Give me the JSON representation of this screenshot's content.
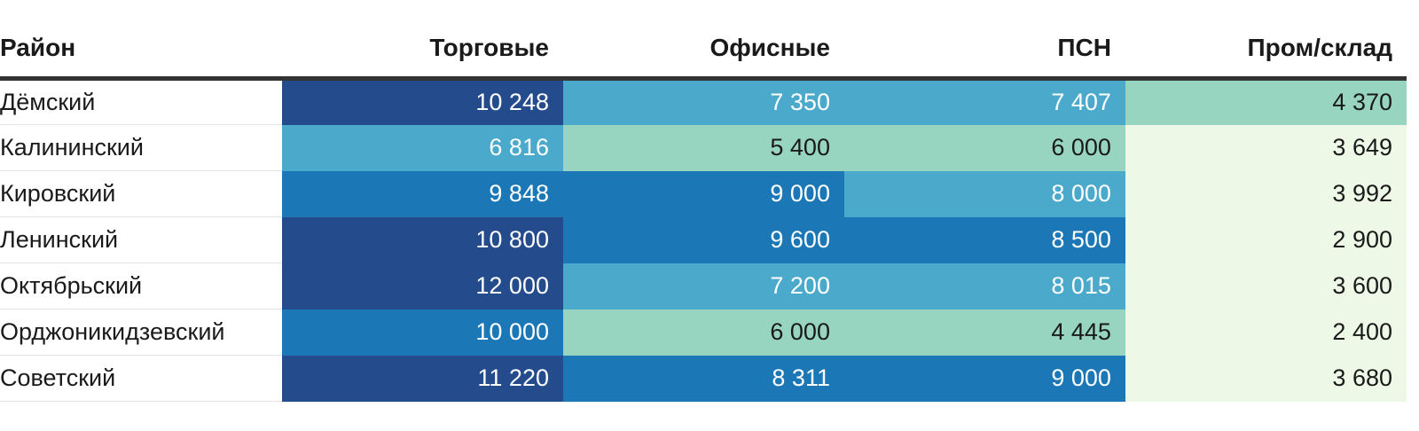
{
  "chart_data": {
    "type": "heatmap",
    "columns": [
      "Район",
      "Торговые",
      "Офисные",
      "ПСН",
      "Пром/склад"
    ],
    "rows": [
      {
        "district": "Дёмский",
        "values": [
          "10 248",
          "7 350",
          "7 407",
          "4 370"
        ],
        "numeric": [
          10248,
          7350,
          7407,
          4370
        ]
      },
      {
        "district": "Калининский",
        "values": [
          "6 816",
          "5 400",
          "6 000",
          "3 649"
        ],
        "numeric": [
          6816,
          5400,
          6000,
          3649
        ]
      },
      {
        "district": "Кировский",
        "values": [
          "9 848",
          "9 000",
          "8 000",
          "3 992"
        ],
        "numeric": [
          9848,
          9000,
          8000,
          3992
        ]
      },
      {
        "district": "Ленинский",
        "values": [
          "10 800",
          "9 600",
          "8 500",
          "2 900"
        ],
        "numeric": [
          10800,
          9600,
          8500,
          2900
        ]
      },
      {
        "district": "Октябрьский",
        "values": [
          "12 000",
          "7 200",
          "8 015",
          "3 600"
        ],
        "numeric": [
          12000,
          7200,
          8015,
          3600
        ]
      },
      {
        "district": "Орджоникидзевский",
        "values": [
          "10 000",
          "6 000",
          "4 445",
          "2 400"
        ],
        "numeric": [
          10000,
          6000,
          4445,
          2400
        ]
      },
      {
        "district": "Советский",
        "values": [
          "11 220",
          "8 311",
          "9 000",
          "3 680"
        ],
        "numeric": [
          11220,
          8311,
          9000,
          3680
        ]
      }
    ],
    "color_scale": [
      {
        "min": 0,
        "max": 4000,
        "color": "#edf8e6",
        "text_color": "#1a1a1a"
      },
      {
        "min": 4000,
        "max": 6800,
        "color": "#97d5c0",
        "text_color": "#1a1a1a"
      },
      {
        "min": 6800,
        "max": 8020,
        "color": "#4ba9cb",
        "text_color": "#ffffff"
      },
      {
        "min": 8020,
        "max": 10200,
        "color": "#1c77b6",
        "text_color": "#ffffff"
      },
      {
        "min": 10200,
        "max": 99999,
        "color": "#244b8b",
        "text_color": "#ffffff"
      }
    ]
  }
}
